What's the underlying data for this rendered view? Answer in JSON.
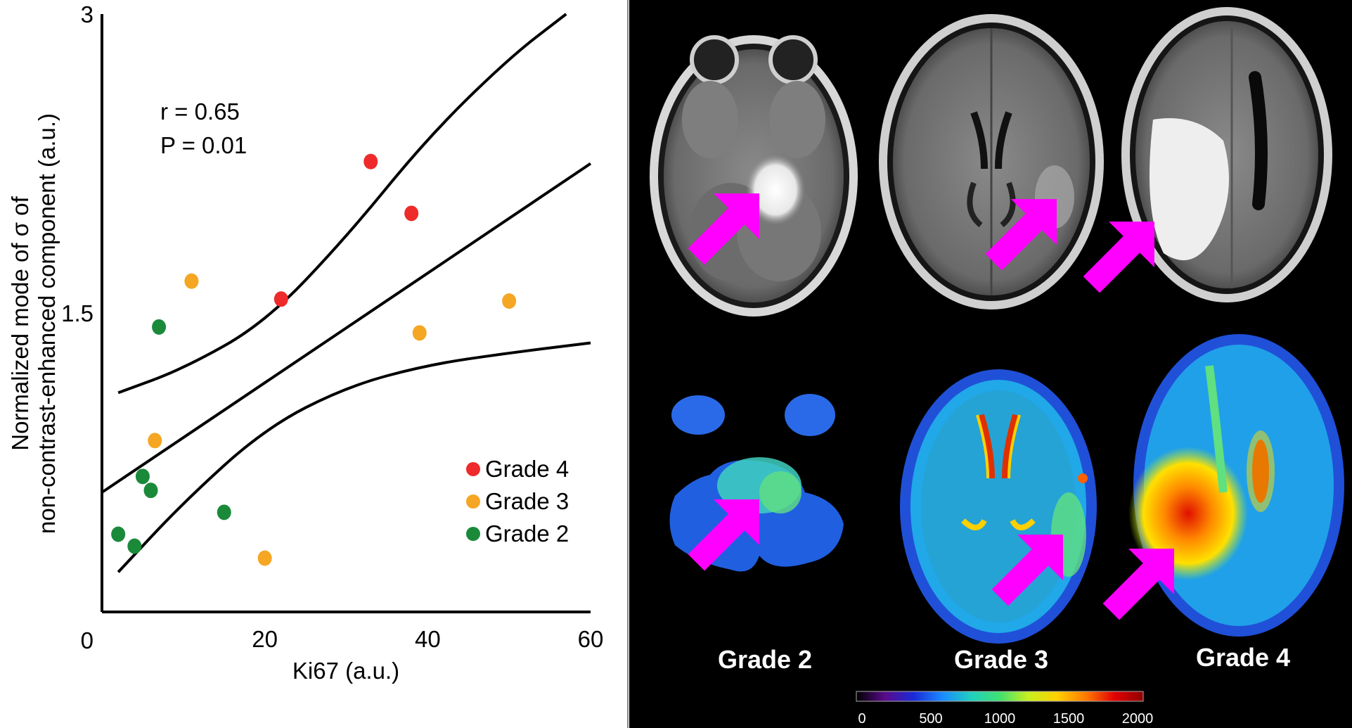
{
  "chart_data": {
    "type": "scatter",
    "title": "",
    "xlabel": "Ki67 (a.u.)",
    "ylabel_lines": [
      "Normalized mode of σ of",
      "non-contrast-enhanced component (a.u.)"
    ],
    "xlim": [
      0,
      60
    ],
    "ylim": [
      0,
      3
    ],
    "x_ticks": [
      0,
      20,
      40,
      60
    ],
    "x_tick_labels": [
      "",
      "20",
      "40",
      "60"
    ],
    "y_ticks": [
      0,
      1.5,
      3
    ],
    "y_tick_labels": [
      "0",
      "1.5",
      "3"
    ],
    "annotations": [
      "r = 0.65",
      "P = 0.01"
    ],
    "legend_position": "lower-right",
    "series": [
      {
        "name": "Grade 4",
        "color": "#ee2a2a",
        "points": [
          [
            33,
            2.26
          ],
          [
            38,
            2.0
          ],
          [
            22,
            1.57
          ]
        ]
      },
      {
        "name": "Grade 3",
        "color": "#f5a623",
        "points": [
          [
            11,
            1.66
          ],
          [
            50,
            1.56
          ],
          [
            39,
            1.4
          ],
          [
            6.5,
            0.86
          ],
          [
            20,
            0.27
          ]
        ]
      },
      {
        "name": "Grade 2",
        "color": "#1a8a3a",
        "points": [
          [
            7,
            1.43
          ],
          [
            5,
            0.68
          ],
          [
            6,
            0.61
          ],
          [
            15,
            0.5
          ],
          [
            2,
            0.39
          ],
          [
            4,
            0.33
          ]
        ]
      }
    ],
    "fit_lines": [
      {
        "name": "upper confidence band",
        "points": [
          [
            2,
            1.1
          ],
          [
            10,
            1.22
          ],
          [
            20,
            1.45
          ],
          [
            30,
            1.88
          ],
          [
            40,
            2.38
          ],
          [
            50,
            2.78
          ],
          [
            57,
            3.0
          ]
        ]
      },
      {
        "name": "regression line",
        "points": [
          [
            0,
            0.6
          ],
          [
            60,
            2.25
          ]
        ]
      },
      {
        "name": "lower confidence band",
        "points": [
          [
            2,
            0.2
          ],
          [
            10,
            0.55
          ],
          [
            20,
            0.92
          ],
          [
            30,
            1.13
          ],
          [
            40,
            1.24
          ],
          [
            50,
            1.3
          ],
          [
            60,
            1.35
          ]
        ]
      }
    ]
  },
  "mri_panel": {
    "grade_labels": [
      "Grade 2",
      "Grade 3",
      "Grade 4"
    ],
    "colorbar": {
      "tick_labels": [
        "0",
        "500",
        "1000",
        "1500",
        "2000"
      ],
      "colors": [
        "#000000",
        "#5a0a8a",
        "#1a2ad8",
        "#1a8aff",
        "#20d0c0",
        "#40e070",
        "#c8f020",
        "#ffd000",
        "#ff7a00",
        "#e00000",
        "#900000"
      ]
    },
    "arrow_color": "#ff00ff"
  }
}
